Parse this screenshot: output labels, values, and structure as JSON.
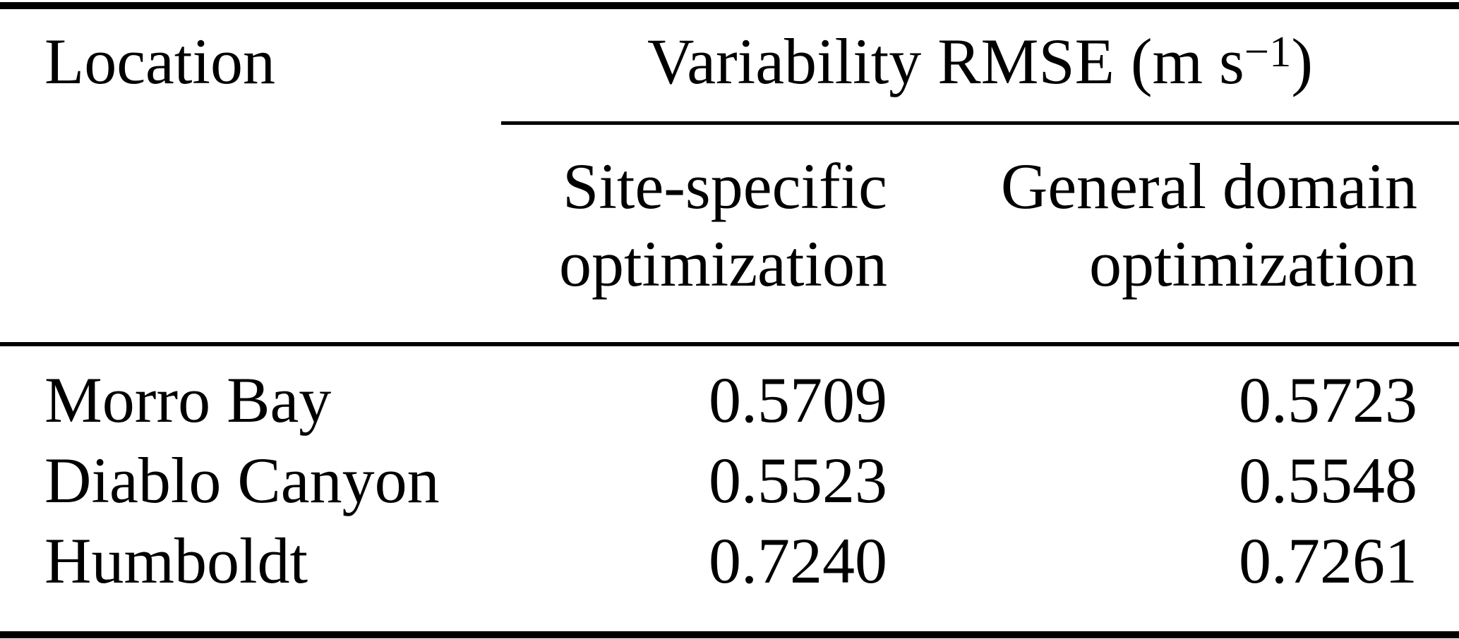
{
  "colors": {
    "background": "#ffffff",
    "text": "#000000",
    "rule": "#000000"
  },
  "table": {
    "location_header": "Location",
    "group_header": {
      "main": "Variability RMSE (m s",
      "sup": "−1",
      "close": ")"
    },
    "sub_headers": {
      "site_specific": {
        "line1": "Site-specific",
        "line2": "optimization"
      },
      "general_domain": {
        "line1": "General domain",
        "line2": "optimization"
      }
    },
    "rows": [
      {
        "location": "Morro Bay",
        "site_specific": "0.5709",
        "general_domain": "0.5723"
      },
      {
        "location": "Diablo Canyon",
        "site_specific": "0.5523",
        "general_domain": "0.5548"
      },
      {
        "location": "Humboldt",
        "site_specific": "0.7240",
        "general_domain": "0.7261"
      }
    ]
  }
}
